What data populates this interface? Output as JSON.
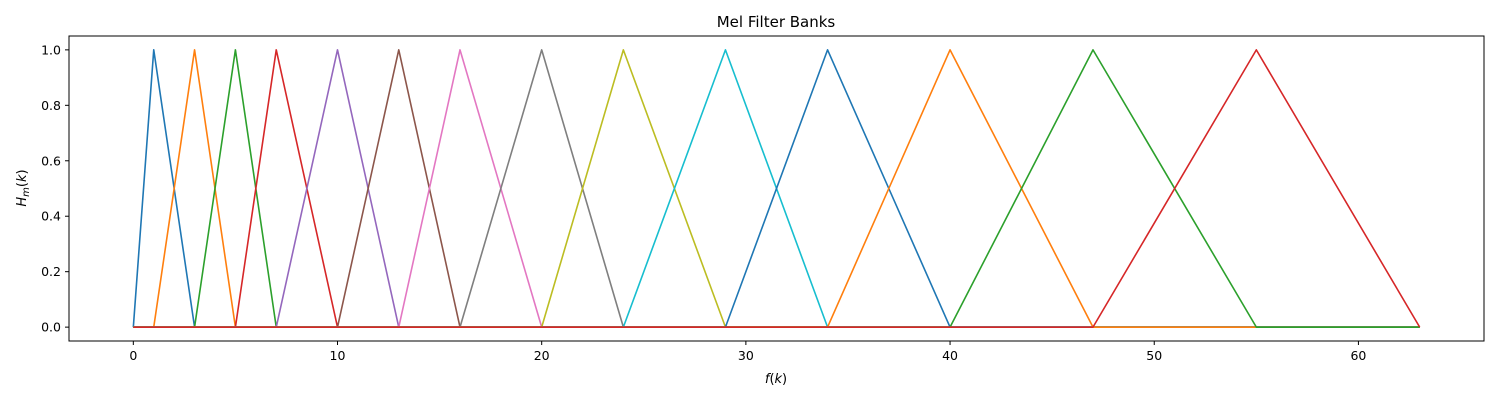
{
  "chart_data": {
    "type": "line",
    "title": "Mel Filter Banks",
    "xlabel": {
      "main": "f",
      "open": "(",
      "var": "k",
      "close": ")"
    },
    "ylabel": {
      "main": "H",
      "sub": "m",
      "open": "(",
      "var": "k",
      "close": ")"
    },
    "xlim": [
      -3.15,
      66.15
    ],
    "ylim": [
      -0.05,
      1.05
    ],
    "xticks": [
      0,
      10,
      20,
      30,
      40,
      50,
      60
    ],
    "xtick_labels": [
      "0",
      "10",
      "20",
      "30",
      "40",
      "50",
      "60"
    ],
    "yticks": [
      0.0,
      0.2,
      0.4,
      0.6,
      0.8,
      1.0
    ],
    "ytick_labels": [
      "0.0",
      "0.2",
      "0.4",
      "0.6",
      "0.8",
      "1.0"
    ],
    "grid": false,
    "legend": "none",
    "x_domain": [
      0,
      63
    ],
    "peak_bins": [
      0,
      1,
      3,
      5,
      7,
      10,
      13,
      16,
      20,
      24,
      29,
      34,
      40,
      47,
      55,
      63
    ],
    "series": [
      {
        "color": "#1f77b4",
        "points": [
          [
            0,
            0
          ],
          [
            1,
            1
          ],
          [
            3,
            0
          ]
        ]
      },
      {
        "color": "#ff7f0e",
        "points": [
          [
            1,
            0
          ],
          [
            3,
            1
          ],
          [
            5,
            0
          ]
        ]
      },
      {
        "color": "#2ca02c",
        "points": [
          [
            3,
            0
          ],
          [
            5,
            1
          ],
          [
            7,
            0
          ]
        ]
      },
      {
        "color": "#d62728",
        "points": [
          [
            5,
            0
          ],
          [
            7,
            1
          ],
          [
            10,
            0
          ]
        ]
      },
      {
        "color": "#9467bd",
        "points": [
          [
            7,
            0
          ],
          [
            10,
            1
          ],
          [
            13,
            0
          ]
        ]
      },
      {
        "color": "#8c564b",
        "points": [
          [
            10,
            0
          ],
          [
            13,
            1
          ],
          [
            16,
            0
          ]
        ]
      },
      {
        "color": "#e377c2",
        "points": [
          [
            13,
            0
          ],
          [
            16,
            1
          ],
          [
            20,
            0
          ]
        ]
      },
      {
        "color": "#7f7f7f",
        "points": [
          [
            16,
            0
          ],
          [
            20,
            1
          ],
          [
            24,
            0
          ]
        ]
      },
      {
        "color": "#bcbd22",
        "points": [
          [
            20,
            0
          ],
          [
            24,
            1
          ],
          [
            29,
            0
          ]
        ]
      },
      {
        "color": "#17becf",
        "points": [
          [
            24,
            0
          ],
          [
            29,
            1
          ],
          [
            34,
            0
          ]
        ]
      },
      {
        "color": "#1f77b4",
        "points": [
          [
            29,
            0
          ],
          [
            34,
            1
          ],
          [
            40,
            0
          ]
        ]
      },
      {
        "color": "#ff7f0e",
        "points": [
          [
            34,
            0
          ],
          [
            40,
            1
          ],
          [
            47,
            0
          ]
        ]
      },
      {
        "color": "#2ca02c",
        "points": [
          [
            40,
            0
          ],
          [
            47,
            1
          ],
          [
            55,
            0
          ]
        ]
      },
      {
        "color": "#d62728",
        "points": [
          [
            47,
            0
          ],
          [
            55,
            1
          ],
          [
            63,
            0
          ]
        ]
      }
    ]
  }
}
